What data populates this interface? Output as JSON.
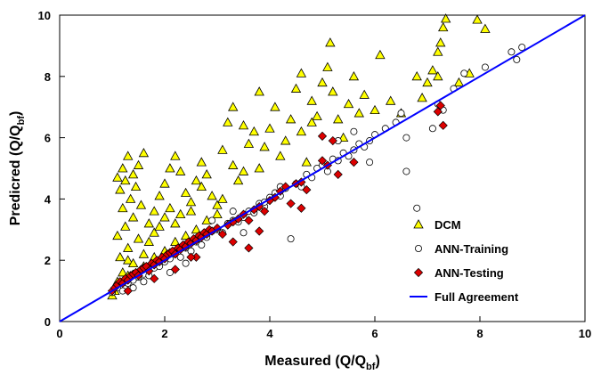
{
  "chart_data": {
    "type": "scatter",
    "title": "",
    "xlabel_main": "Measured (Q/Q",
    "xlabel_sub": "bf",
    "xlabel_close": ")",
    "ylabel_main": "Predicred (Q/Q",
    "ylabel_sub": "bf",
    "ylabel_close": ")",
    "xlim": [
      0,
      10
    ],
    "ylim": [
      0,
      10
    ],
    "x_ticks": [
      "0",
      "2",
      "4",
      "6",
      "8",
      "10"
    ],
    "y_ticks": [
      "0",
      "2",
      "4",
      "6",
      "8",
      "10"
    ],
    "grid": false,
    "legend_position": "bottom-right",
    "colors": {
      "dcm_fill": "#ffff00",
      "testing_fill": "#dd0000",
      "full_agreement": "#0000ff",
      "marker_stroke": "#000000"
    },
    "series": [
      {
        "name": "DCM",
        "marker": "triangle",
        "points": [
          [
            1.05,
            1.0
          ],
          [
            1.1,
            1.3
          ],
          [
            1.2,
            1.6
          ],
          [
            1.15,
            2.1
          ],
          [
            1.3,
            2.4
          ],
          [
            1.1,
            2.8
          ],
          [
            1.25,
            3.1
          ],
          [
            1.4,
            3.4
          ],
          [
            1.2,
            3.7
          ],
          [
            1.35,
            4.0
          ],
          [
            1.15,
            4.3
          ],
          [
            1.25,
            4.6
          ],
          [
            1.4,
            4.8
          ],
          [
            1.5,
            5.1
          ],
          [
            1.3,
            5.4
          ],
          [
            1.6,
            5.5
          ],
          [
            1.1,
            4.7
          ],
          [
            1.2,
            5.0
          ],
          [
            1.45,
            4.4
          ],
          [
            1.55,
            3.8
          ],
          [
            1.7,
            3.2
          ],
          [
            1.8,
            3.6
          ],
          [
            1.9,
            4.1
          ],
          [
            2.0,
            4.5
          ],
          [
            2.1,
            5.0
          ],
          [
            2.2,
            5.4
          ],
          [
            2.3,
            4.9
          ],
          [
            2.4,
            4.2
          ],
          [
            2.5,
            3.9
          ],
          [
            2.6,
            4.6
          ],
          [
            2.7,
            5.2
          ],
          [
            2.8,
            4.8
          ],
          [
            2.9,
            4.1
          ],
          [
            3.0,
            3.8
          ],
          [
            1.6,
            2.2
          ],
          [
            1.7,
            2.6
          ],
          [
            1.8,
            2.9
          ],
          [
            1.9,
            3.1
          ],
          [
            2.0,
            3.4
          ],
          [
            2.1,
            3.7
          ],
          [
            2.2,
            3.2
          ],
          [
            2.3,
            3.5
          ],
          [
            2.5,
            3.6
          ],
          [
            1.5,
            2.7
          ],
          [
            1.3,
            2.0
          ],
          [
            1.4,
            1.9
          ],
          [
            1.6,
            1.8
          ],
          [
            1.8,
            2.1
          ],
          [
            2.0,
            2.3
          ],
          [
            2.2,
            2.6
          ],
          [
            2.4,
            2.8
          ],
          [
            2.6,
            3.0
          ],
          [
            2.8,
            3.3
          ],
          [
            3.0,
            3.5
          ],
          [
            3.1,
            5.6
          ],
          [
            3.2,
            6.5
          ],
          [
            3.3,
            5.1
          ],
          [
            3.4,
            4.6
          ],
          [
            3.5,
            6.4
          ],
          [
            3.6,
            5.8
          ],
          [
            3.7,
            6.2
          ],
          [
            3.8,
            5.0
          ],
          [
            3.9,
            5.7
          ],
          [
            4.0,
            6.3
          ],
          [
            4.1,
            7.0
          ],
          [
            4.2,
            5.4
          ],
          [
            4.3,
            5.9
          ],
          [
            4.4,
            6.6
          ],
          [
            4.5,
            7.6
          ],
          [
            4.6,
            6.2
          ],
          [
            4.7,
            5.2
          ],
          [
            4.8,
            7.2
          ],
          [
            4.9,
            6.7
          ],
          [
            5.0,
            7.8
          ],
          [
            5.1,
            8.3
          ],
          [
            5.2,
            7.5
          ],
          [
            5.3,
            6.6
          ],
          [
            5.5,
            7.1
          ],
          [
            5.6,
            8.0
          ],
          [
            5.7,
            6.8
          ],
          [
            5.8,
            7.4
          ],
          [
            6.0,
            6.9
          ],
          [
            6.1,
            8.7
          ],
          [
            6.3,
            7.2
          ],
          [
            6.5,
            6.8
          ],
          [
            5.15,
            9.1
          ],
          [
            4.6,
            8.1
          ],
          [
            3.3,
            7.0
          ],
          [
            3.8,
            7.5
          ],
          [
            6.8,
            8.0
          ],
          [
            6.9,
            7.3
          ],
          [
            7.0,
            7.8
          ],
          [
            7.1,
            8.2
          ],
          [
            7.2,
            8.8
          ],
          [
            7.25,
            9.1
          ],
          [
            7.3,
            9.6
          ],
          [
            7.35,
            10.0
          ],
          [
            7.6,
            7.8
          ],
          [
            7.8,
            8.1
          ],
          [
            7.95,
            9.85
          ],
          [
            8.1,
            9.55
          ],
          [
            7.2,
            8.0
          ],
          [
            4.8,
            6.5
          ],
          [
            5.4,
            6.0
          ],
          [
            3.5,
            4.9
          ],
          [
            2.7,
            4.4
          ],
          [
            3.1,
            4.0
          ],
          [
            1.0,
            0.85
          ],
          [
            1.05,
            1.15
          ],
          [
            1.2,
            1.3
          ],
          [
            1.3,
            1.5
          ]
        ]
      },
      {
        "name": "ANN-Training",
        "marker": "circle",
        "points": [
          [
            1.0,
            0.95
          ],
          [
            1.1,
            1.1
          ],
          [
            1.2,
            1.0
          ],
          [
            1.3,
            1.25
          ],
          [
            1.4,
            1.35
          ],
          [
            1.5,
            1.45
          ],
          [
            1.6,
            1.55
          ],
          [
            1.7,
            1.5
          ],
          [
            1.8,
            1.75
          ],
          [
            1.9,
            1.8
          ],
          [
            2.0,
            1.95
          ],
          [
            2.1,
            2.05
          ],
          [
            2.2,
            2.2
          ],
          [
            2.3,
            2.1
          ],
          [
            2.4,
            2.4
          ],
          [
            2.5,
            2.3
          ],
          [
            2.6,
            2.6
          ],
          [
            2.7,
            2.5
          ],
          [
            2.8,
            2.75
          ],
          [
            2.9,
            2.95
          ],
          [
            3.0,
            3.0
          ],
          [
            3.1,
            2.9
          ],
          [
            3.2,
            3.2
          ],
          [
            3.3,
            3.3
          ],
          [
            3.4,
            3.25
          ],
          [
            3.5,
            3.4
          ],
          [
            3.6,
            3.6
          ],
          [
            3.7,
            3.55
          ],
          [
            3.8,
            3.85
          ],
          [
            3.9,
            3.75
          ],
          [
            4.0,
            4.05
          ],
          [
            4.1,
            4.2
          ],
          [
            4.2,
            4.1
          ],
          [
            4.3,
            4.35
          ],
          [
            4.4,
            2.7
          ],
          [
            4.5,
            4.5
          ],
          [
            4.6,
            4.4
          ],
          [
            4.7,
            4.8
          ],
          [
            4.8,
            4.7
          ],
          [
            4.9,
            5.0
          ],
          [
            5.0,
            5.1
          ],
          [
            5.1,
            4.9
          ],
          [
            5.2,
            5.3
          ],
          [
            5.3,
            5.25
          ],
          [
            5.4,
            5.5
          ],
          [
            5.5,
            5.4
          ],
          [
            5.6,
            5.6
          ],
          [
            5.7,
            5.8
          ],
          [
            5.8,
            5.7
          ],
          [
            5.9,
            5.9
          ],
          [
            6.0,
            6.1
          ],
          [
            6.2,
            6.3
          ],
          [
            6.4,
            6.5
          ],
          [
            6.5,
            6.8
          ],
          [
            6.6,
            6.0
          ],
          [
            6.8,
            3.7
          ],
          [
            7.1,
            6.3
          ],
          [
            7.2,
            7.1
          ],
          [
            7.3,
            6.9
          ],
          [
            7.5,
            7.6
          ],
          [
            7.7,
            8.1
          ],
          [
            8.1,
            8.3
          ],
          [
            8.6,
            8.8
          ],
          [
            8.7,
            8.55
          ],
          [
            8.8,
            8.95
          ],
          [
            5.3,
            5.9
          ],
          [
            5.6,
            6.2
          ],
          [
            5.9,
            5.2
          ],
          [
            6.6,
            4.9
          ],
          [
            2.1,
            1.6
          ],
          [
            2.4,
            1.9
          ],
          [
            1.4,
            1.1
          ],
          [
            1.6,
            1.3
          ],
          [
            3.5,
            2.9
          ],
          [
            3.3,
            3.6
          ],
          [
            2.9,
            3.3
          ],
          [
            3.9,
            3.9
          ],
          [
            4.2,
            4.4
          ]
        ]
      },
      {
        "name": "ANN-Testing",
        "marker": "diamond",
        "points": [
          [
            1.0,
            1.0
          ],
          [
            1.05,
            1.1
          ],
          [
            1.1,
            1.2
          ],
          [
            1.15,
            1.3
          ],
          [
            1.2,
            1.25
          ],
          [
            1.25,
            1.4
          ],
          [
            1.3,
            1.35
          ],
          [
            1.35,
            1.5
          ],
          [
            1.4,
            1.55
          ],
          [
            1.45,
            1.6
          ],
          [
            1.5,
            1.5
          ],
          [
            1.55,
            1.7
          ],
          [
            1.6,
            1.75
          ],
          [
            1.65,
            1.8
          ],
          [
            1.7,
            1.65
          ],
          [
            1.75,
            1.9
          ],
          [
            1.8,
            1.85
          ],
          [
            1.85,
            2.0
          ],
          [
            1.9,
            1.95
          ],
          [
            1.95,
            2.1
          ],
          [
            2.0,
            2.05
          ],
          [
            2.05,
            2.2
          ],
          [
            2.1,
            2.25
          ],
          [
            2.15,
            2.3
          ],
          [
            2.2,
            2.2
          ],
          [
            2.25,
            2.4
          ],
          [
            2.3,
            2.35
          ],
          [
            2.35,
            2.5
          ],
          [
            2.4,
            2.45
          ],
          [
            2.45,
            2.6
          ],
          [
            2.5,
            2.55
          ],
          [
            2.55,
            2.7
          ],
          [
            2.6,
            2.65
          ],
          [
            2.65,
            2.8
          ],
          [
            2.7,
            2.75
          ],
          [
            2.75,
            2.9
          ],
          [
            2.8,
            2.85
          ],
          [
            2.85,
            3.0
          ],
          [
            2.9,
            2.95
          ],
          [
            3.0,
            3.05
          ],
          [
            3.1,
            2.85
          ],
          [
            3.2,
            3.15
          ],
          [
            3.3,
            3.25
          ],
          [
            3.4,
            3.35
          ],
          [
            3.5,
            3.5
          ],
          [
            3.6,
            3.3
          ],
          [
            3.7,
            3.65
          ],
          [
            3.8,
            3.75
          ],
          [
            3.9,
            3.6
          ],
          [
            4.0,
            3.95
          ],
          [
            4.1,
            4.05
          ],
          [
            4.2,
            4.25
          ],
          [
            4.3,
            4.4
          ],
          [
            4.4,
            3.85
          ],
          [
            4.5,
            4.5
          ],
          [
            4.6,
            4.55
          ],
          [
            4.7,
            4.3
          ],
          [
            5.0,
            5.25
          ],
          [
            5.1,
            5.1
          ],
          [
            5.2,
            5.9
          ],
          [
            5.6,
            5.2
          ],
          [
            5.3,
            4.8
          ],
          [
            5.0,
            6.05
          ],
          [
            7.2,
            6.85
          ],
          [
            7.3,
            6.4
          ],
          [
            7.25,
            7.05
          ],
          [
            3.3,
            2.6
          ],
          [
            3.6,
            2.4
          ],
          [
            2.6,
            2.1
          ],
          [
            1.8,
            1.4
          ],
          [
            2.2,
            1.7
          ],
          [
            1.3,
            1.0
          ],
          [
            2.5,
            2.1
          ],
          [
            3.8,
            2.95
          ],
          [
            4.6,
            3.7
          ]
        ]
      }
    ],
    "reference_line": {
      "name": "Full Agreement",
      "x": [
        0,
        10
      ],
      "y": [
        0,
        10
      ]
    }
  }
}
